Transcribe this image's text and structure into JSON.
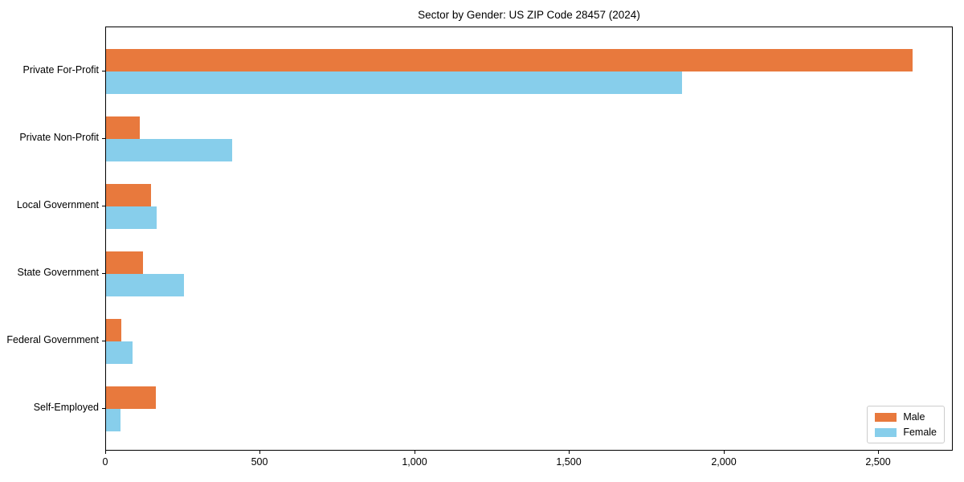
{
  "chart_data": {
    "type": "bar",
    "orientation": "horizontal",
    "title": "Sector by Gender: US ZIP Code 28457 (2024)",
    "xlabel": "",
    "ylabel": "",
    "categories": [
      "Private For-Profit",
      "Private Non-Profit",
      "Local Government",
      "State Government",
      "Federal Government",
      "Self-Employed"
    ],
    "series": [
      {
        "name": "Male",
        "color": "#e8793d",
        "values": [
          2610,
          110,
          146,
          120,
          50,
          161
        ]
      },
      {
        "name": "Female",
        "color": "#87ceeb",
        "values": [
          1863,
          408,
          165,
          252,
          86,
          47
        ]
      }
    ],
    "xlim": [
      0,
      2742
    ],
    "xticks": [
      0,
      500,
      1000,
      1500,
      2000,
      2500
    ],
    "xtick_labels": [
      "0",
      "500",
      "1,000",
      "1,500",
      "2,000",
      "2,500"
    ],
    "grid": false,
    "legend": {
      "position": "lower right",
      "entries": [
        "Male",
        "Female"
      ]
    },
    "frame": true,
    "background_color": "#ffffff",
    "text_color": "#000000"
  }
}
